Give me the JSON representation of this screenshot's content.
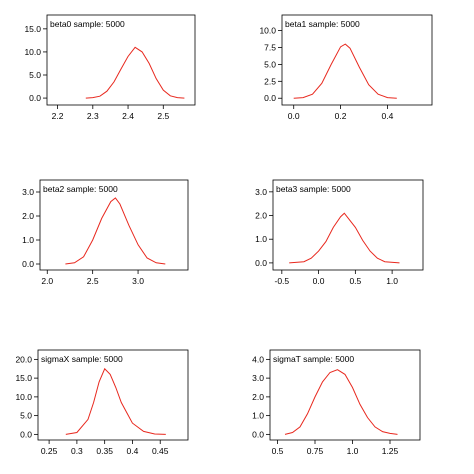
{
  "chart_data": [
    {
      "type": "line",
      "title": "beta0 sample: 5000",
      "xticks": [
        2.2,
        2.3,
        2.4,
        2.5
      ],
      "xtick_labels": [
        "2.2",
        "2.3",
        "2.4",
        "2.5"
      ],
      "yticks": [
        0,
        5,
        10,
        15
      ],
      "ytick_labels": [
        "0.0",
        "5.0",
        "10.0",
        "15.0"
      ],
      "xlim": [
        2.17,
        2.59
      ],
      "ylim": [
        -1.5,
        18
      ],
      "x": [
        2.28,
        2.3,
        2.32,
        2.34,
        2.36,
        2.38,
        2.4,
        2.42,
        2.44,
        2.46,
        2.48,
        2.5,
        2.52,
        2.54,
        2.56
      ],
      "y": [
        0.0,
        0.1,
        0.4,
        1.5,
        3.5,
        6.3,
        9.0,
        11.0,
        10.0,
        7.5,
        4.2,
        1.7,
        0.5,
        0.1,
        0.0
      ]
    },
    {
      "type": "line",
      "title": "beta1 sample: 5000",
      "xticks": [
        0.0,
        0.2,
        0.4
      ],
      "xtick_labels": [
        "0.0",
        "0.2",
        "0.4"
      ],
      "yticks": [
        0,
        2.5,
        5,
        7.5,
        10
      ],
      "ytick_labels": [
        "0.0",
        "2.5",
        "5.0",
        "7.5",
        "10.0"
      ],
      "xlim": [
        -0.05,
        0.59
      ],
      "ylim": [
        -1,
        12.3
      ],
      "x": [
        0.0,
        0.04,
        0.08,
        0.12,
        0.16,
        0.2,
        0.22,
        0.24,
        0.28,
        0.32,
        0.36,
        0.4,
        0.44
      ],
      "y": [
        0.0,
        0.1,
        0.6,
        2.2,
        5.0,
        7.6,
        8.0,
        7.4,
        4.6,
        2.0,
        0.6,
        0.1,
        0.0
      ]
    },
    {
      "type": "line",
      "title": "beta2 sample: 5000",
      "xticks": [
        2.0,
        2.5,
        3.0
      ],
      "xtick_labels": [
        "2.0",
        "2.5",
        "3.0"
      ],
      "yticks": [
        0,
        1,
        2,
        3
      ],
      "ytick_labels": [
        "0.0",
        "1.0",
        "2.0",
        "3.0"
      ],
      "xlim": [
        1.92,
        3.55
      ],
      "ylim": [
        -0.25,
        3.5
      ],
      "x": [
        2.2,
        2.3,
        2.4,
        2.5,
        2.6,
        2.7,
        2.75,
        2.8,
        2.9,
        3.0,
        3.1,
        3.2,
        3.3
      ],
      "y": [
        0.0,
        0.05,
        0.3,
        1.0,
        1.9,
        2.6,
        2.75,
        2.5,
        1.6,
        0.8,
        0.25,
        0.05,
        0.0
      ]
    },
    {
      "type": "line",
      "title": "beta3 sample: 5000",
      "xticks": [
        -0.5,
        0.0,
        0.5,
        1.0
      ],
      "xtick_labels": [
        "-0.5",
        "0.0",
        "0.5",
        "1.0"
      ],
      "yticks": [
        0,
        1,
        2,
        3
      ],
      "ytick_labels": [
        "0.0",
        "1.0",
        "2.0",
        "3.0"
      ],
      "xlim": [
        -0.62,
        1.42
      ],
      "ylim": [
        -0.3,
        3.5
      ],
      "x": [
        -0.4,
        -0.2,
        -0.1,
        0.0,
        0.1,
        0.2,
        0.3,
        0.35,
        0.4,
        0.5,
        0.6,
        0.7,
        0.8,
        0.9,
        1.1
      ],
      "y": [
        0.0,
        0.05,
        0.2,
        0.5,
        0.9,
        1.5,
        1.95,
        2.1,
        1.9,
        1.5,
        0.95,
        0.5,
        0.2,
        0.05,
        0.0
      ]
    },
    {
      "type": "line",
      "title": "sigmaX sample: 5000",
      "xticks": [
        0.25,
        0.3,
        0.35,
        0.4,
        0.45
      ],
      "xtick_labels": [
        "0.25",
        "0.3",
        "0.35",
        "0.4",
        "0.45"
      ],
      "yticks": [
        0,
        5,
        10,
        15,
        20
      ],
      "ytick_labels": [
        "0.0",
        "5.0",
        "10.0",
        "15.0",
        "20.0"
      ],
      "xlim": [
        0.23,
        0.5
      ],
      "ylim": [
        -1.5,
        22.5
      ],
      "x": [
        0.28,
        0.3,
        0.32,
        0.33,
        0.34,
        0.35,
        0.36,
        0.37,
        0.38,
        0.4,
        0.42,
        0.44,
        0.46
      ],
      "y": [
        0.0,
        0.5,
        4.0,
        8.5,
        14.0,
        17.5,
        16.0,
        12.5,
        8.5,
        3.0,
        0.8,
        0.1,
        0.0
      ]
    },
    {
      "type": "line",
      "title": "sigmaT sample: 5000",
      "xticks": [
        0.5,
        0.75,
        1.0,
        1.25
      ],
      "xtick_labels": [
        "0.5",
        "0.75",
        "1.0",
        "1.25"
      ],
      "yticks": [
        0,
        1,
        2,
        3,
        4
      ],
      "ytick_labels": [
        "0.0",
        "1.0",
        "2.0",
        "3.0",
        "4.0"
      ],
      "xlim": [
        0.45,
        1.45
      ],
      "ylim": [
        -0.3,
        4.5
      ],
      "x": [
        0.55,
        0.6,
        0.65,
        0.7,
        0.75,
        0.8,
        0.85,
        0.9,
        0.95,
        1.0,
        1.05,
        1.1,
        1.15,
        1.2,
        1.25,
        1.3
      ],
      "y": [
        0.0,
        0.1,
        0.4,
        1.1,
        2.0,
        2.8,
        3.3,
        3.45,
        3.2,
        2.5,
        1.6,
        0.9,
        0.4,
        0.15,
        0.05,
        0.0
      ]
    }
  ],
  "colors": {
    "curve": "#e8281e",
    "axis": "#000000"
  }
}
